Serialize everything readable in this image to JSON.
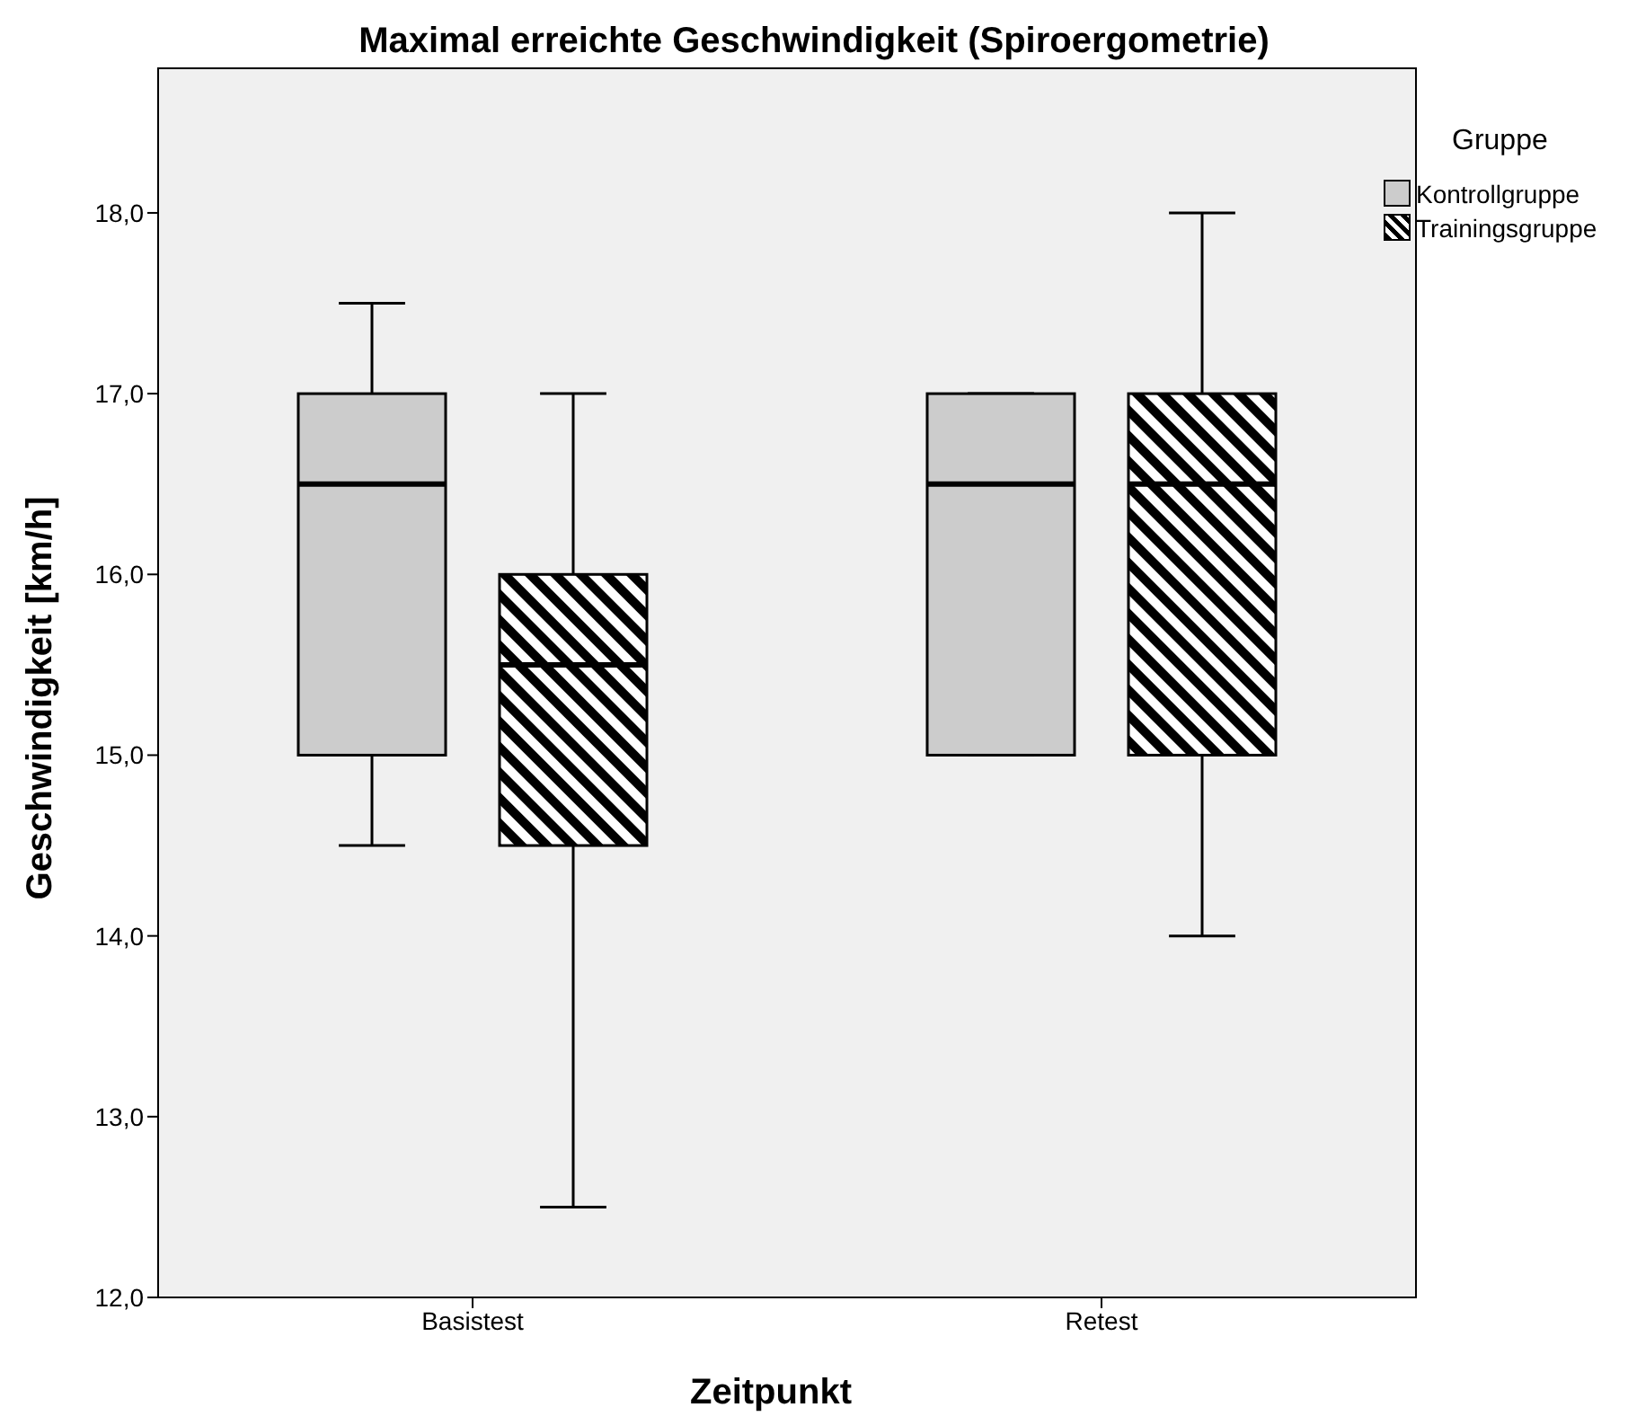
{
  "chart_data": {
    "type": "box",
    "title": "Maximal erreichte Geschwindigkeit (Spiroergometrie)",
    "xlabel": "Zeitpunkt",
    "ylabel": "Geschwindigkeit [km/h]",
    "legend_title": "Gruppe",
    "legend": "top right",
    "categories": [
      "Basistest",
      "Retest"
    ],
    "ylim": [
      12,
      18.8
    ],
    "yticks": [
      {
        "value": 12,
        "label": "12,0"
      },
      {
        "value": 13,
        "label": "13,0"
      },
      {
        "value": 14,
        "label": "14,0"
      },
      {
        "value": 15,
        "label": "15,0"
      },
      {
        "value": 16,
        "label": "16,0"
      },
      {
        "value": 17,
        "label": "17,0"
      },
      {
        "value": 18,
        "label": "18,0"
      }
    ],
    "series": [
      {
        "name": "Kontrollgruppe",
        "color": "#cccccc",
        "boxes": [
          {
            "low": 14.5,
            "q1": 15,
            "median": 16.5,
            "q3": 17,
            "high": 17.5
          },
          {
            "low": 15,
            "q1": 15,
            "median": 16.5,
            "q3": 17,
            "high": 17
          }
        ]
      },
      {
        "name": "Trainingsgruppe",
        "color": "#000000",
        "boxes": [
          {
            "low": 12.5,
            "q1": 14.5,
            "median": 15.5,
            "q3": 16,
            "high": 17
          },
          {
            "low": 14,
            "q1": 15,
            "median": 16.5,
            "q3": 17,
            "high": 18
          }
        ]
      }
    ]
  }
}
